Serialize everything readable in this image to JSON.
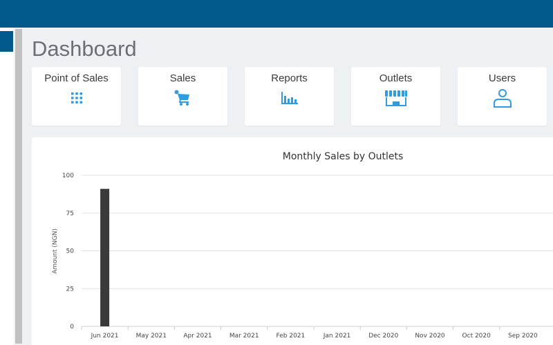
{
  "page": {
    "title": "Dashboard"
  },
  "cards": [
    {
      "label": "Point of Sales",
      "icon": "grid-icon"
    },
    {
      "label": "Sales",
      "icon": "cart-icon"
    },
    {
      "label": "Reports",
      "icon": "bar-chart-icon"
    },
    {
      "label": "Outlets",
      "icon": "storefront-icon"
    },
    {
      "label": "Users",
      "icon": "user-icon"
    }
  ],
  "colors": {
    "accent": "#025a8c",
    "icon": "#2f9be0",
    "bar": "#3a3a3a"
  },
  "chart_data": {
    "type": "bar",
    "title": "Monthly Sales by Outlets",
    "xlabel": "",
    "ylabel": "Amount (NGN)",
    "ylim": [
      0,
      100
    ],
    "yticks": [
      0,
      25,
      50,
      75,
      100
    ],
    "categories": [
      "Jun 2021",
      "May 2021",
      "Apr 2021",
      "Mar 2021",
      "Feb 2021",
      "Jan 2021",
      "Dec 2020",
      "Nov 2020",
      "Oct 2020",
      "Sep 2020"
    ],
    "values": [
      91,
      0,
      0,
      0,
      0,
      0,
      0,
      0,
      0,
      0
    ],
    "grid": true
  }
}
